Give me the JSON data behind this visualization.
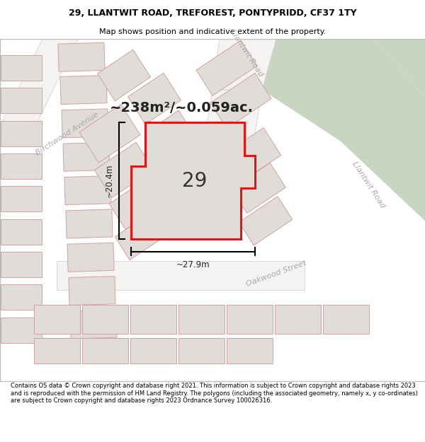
{
  "title": "29, LLANTWIT ROAD, TREFOREST, PONTYPRIDD, CF37 1TY",
  "subtitle": "Map shows position and indicative extent of the property.",
  "footer": "Contains OS data © Crown copyright and database right 2021. This information is subject to Crown copyright and database rights 2023 and is reproduced with the permission of HM Land Registry. The polygons (including the associated geometry, namely x, y co-ordinates) are subject to Crown copyright and database rights 2023 Ordnance Survey 100026316.",
  "bg_color": "#eeecea",
  "building_fill": "#e0ddd8",
  "building_edge": "#d4a0a0",
  "road_fill": "#f5f3f1",
  "green_fill": "#c8d5c0",
  "plot_fill": "#e0ddd8",
  "plot_edge": "#ee1111",
  "plot_edge_width": 2.2,
  "area_text": "~238m²/~0.059ac.",
  "width_text": "~27.9m",
  "height_text": "~20.4m",
  "number_text": "29",
  "title_fontsize": 9,
  "subtitle_fontsize": 8,
  "footer_fontsize": 6.0
}
